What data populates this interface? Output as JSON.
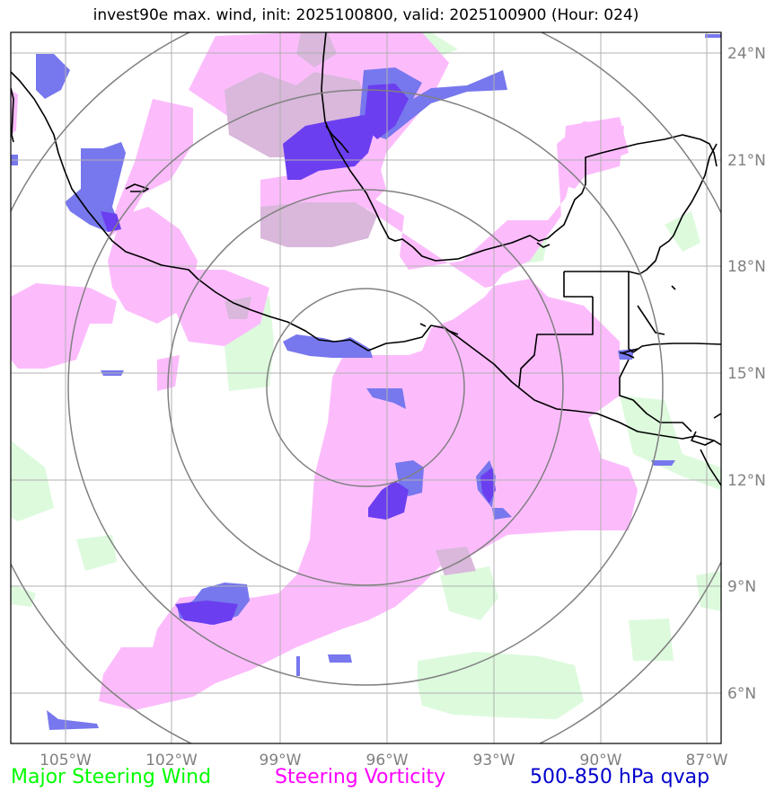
{
  "title": "invest90e max. wind, init: 2025100800, valid: 2025100900 (Hour: 024)",
  "lon_ticks": [
    "105°W",
    "102°W",
    "99°W",
    "96°W",
    "93°W",
    "90°W",
    "87°W"
  ],
  "lat_ticks": [
    "24°N",
    "21°N",
    "18°N",
    "15°N",
    "12°N",
    "9°N",
    "6°N"
  ],
  "legend": {
    "wind": "Major Steering Wind",
    "vorticity": "Steering Vorticity",
    "qvap": "500-850 hPa qvap"
  },
  "colors": {
    "wind": "#00ff00",
    "vorticity": "#ff00ff",
    "qvap": "#0000cc",
    "wind_fill": "#ddfadd",
    "vorticity_fill": "#fcbcfc",
    "qvap_fill": "#7777ee",
    "overlap_fill": "#6b3ef0",
    "mixed_fill": "#d9b8db",
    "grid": "#b0b0b0",
    "range_rings": "#808080",
    "coastline": "#000000"
  }
}
